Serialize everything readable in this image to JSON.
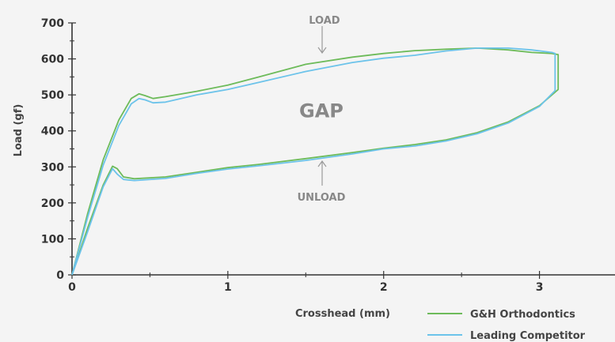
{
  "chart_data": {
    "type": "line",
    "title": "",
    "xlabel": "Crosshead (mm)",
    "ylabel": "Load (gf)",
    "xlim": [
      0,
      3.5
    ],
    "ylim": [
      0,
      700
    ],
    "xticks": [
      0,
      1,
      2,
      3
    ],
    "yticks": [
      0,
      100,
      200,
      300,
      400,
      500,
      600,
      700
    ],
    "legend_position": "bottom-right",
    "grid": false,
    "annotations": [
      {
        "text": "LOAD",
        "x": 1.62,
        "y": 700
      },
      {
        "text": "GAP",
        "x": 1.6,
        "y": 460
      },
      {
        "text": "UNLOAD",
        "x": 1.6,
        "y": 210
      }
    ],
    "series": [
      {
        "name": "G&H Orthodontics",
        "color": "#6dbb5a",
        "x": [
          0,
          0.1,
          0.2,
          0.3,
          0.38,
          0.43,
          0.47,
          0.52,
          0.6,
          0.8,
          1.0,
          1.2,
          1.5,
          1.8,
          2.0,
          2.2,
          2.4,
          2.6,
          2.8,
          2.95,
          3.08,
          3.12,
          3.12,
          3.0,
          2.8,
          2.6,
          2.4,
          2.2,
          2.0,
          1.8,
          1.5,
          1.2,
          1.0,
          0.8,
          0.6,
          0.4,
          0.33,
          0.29,
          0.26,
          0.2,
          0.1,
          0
        ],
        "y": [
          0,
          170,
          320,
          430,
          490,
          503,
          498,
          490,
          495,
          510,
          527,
          550,
          585,
          605,
          615,
          623,
          627,
          630,
          625,
          618,
          615,
          612,
          515,
          470,
          425,
          395,
          375,
          362,
          352,
          340,
          323,
          307,
          298,
          285,
          272,
          267,
          272,
          295,
          302,
          250,
          130,
          0
        ]
      },
      {
        "name": "Leading Competitor",
        "color": "#6cc3ea",
        "x": [
          0,
          0.1,
          0.2,
          0.3,
          0.38,
          0.43,
          0.47,
          0.52,
          0.6,
          0.8,
          1.0,
          1.2,
          1.5,
          1.8,
          2.0,
          2.2,
          2.4,
          2.6,
          2.8,
          2.95,
          3.08,
          3.1,
          3.1,
          3.0,
          2.8,
          2.6,
          2.4,
          2.2,
          2.0,
          1.8,
          1.5,
          1.2,
          1.0,
          0.8,
          0.6,
          0.4,
          0.33,
          0.29,
          0.26,
          0.2,
          0.1,
          0
        ],
        "y": [
          0,
          160,
          305,
          415,
          475,
          490,
          486,
          478,
          480,
          500,
          515,
          535,
          565,
          590,
          602,
          610,
          622,
          630,
          630,
          625,
          618,
          615,
          512,
          468,
          422,
          392,
          372,
          358,
          350,
          336,
          318,
          303,
          294,
          282,
          268,
          262,
          265,
          280,
          295,
          245,
          120,
          0
        ]
      }
    ]
  }
}
